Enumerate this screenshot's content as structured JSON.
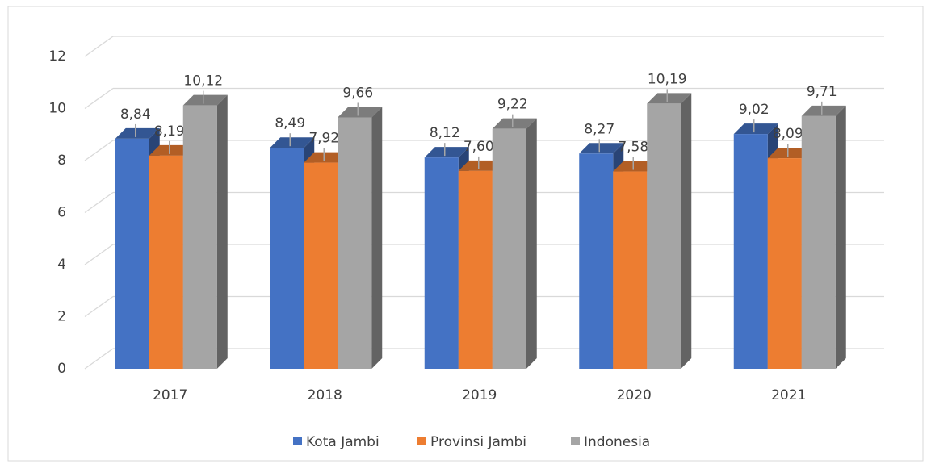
{
  "chart_data": {
    "type": "bar3d",
    "categories": [
      "2017",
      "2018",
      "2019",
      "2020",
      "2021"
    ],
    "series": [
      {
        "name": "Kota Jambi",
        "color": "#4472c4",
        "values": [
          8.84,
          8.49,
          8.12,
          8.27,
          9.02
        ],
        "value_labels": [
          "8,84",
          "8,49",
          "8,12",
          "8,27",
          "9,02"
        ]
      },
      {
        "name": "Provinsi Jambi",
        "color": "#ed7d31",
        "values": [
          8.19,
          7.92,
          7.6,
          7.58,
          8.09
        ],
        "value_labels": [
          "8,19",
          "7,92",
          "7,60",
          "7,58",
          "8,09"
        ]
      },
      {
        "name": "Indonesia",
        "color": "#a5a5a5",
        "values": [
          10.12,
          9.66,
          9.22,
          10.19,
          9.71
        ],
        "value_labels": [
          "10,12",
          "9,66",
          "9,22",
          "10,19",
          "9,71"
        ]
      }
    ],
    "ylim": [
      0,
      12
    ],
    "yticks": [
      0,
      2,
      4,
      6,
      8,
      10,
      12
    ],
    "grid": true,
    "legend": "bottom"
  }
}
